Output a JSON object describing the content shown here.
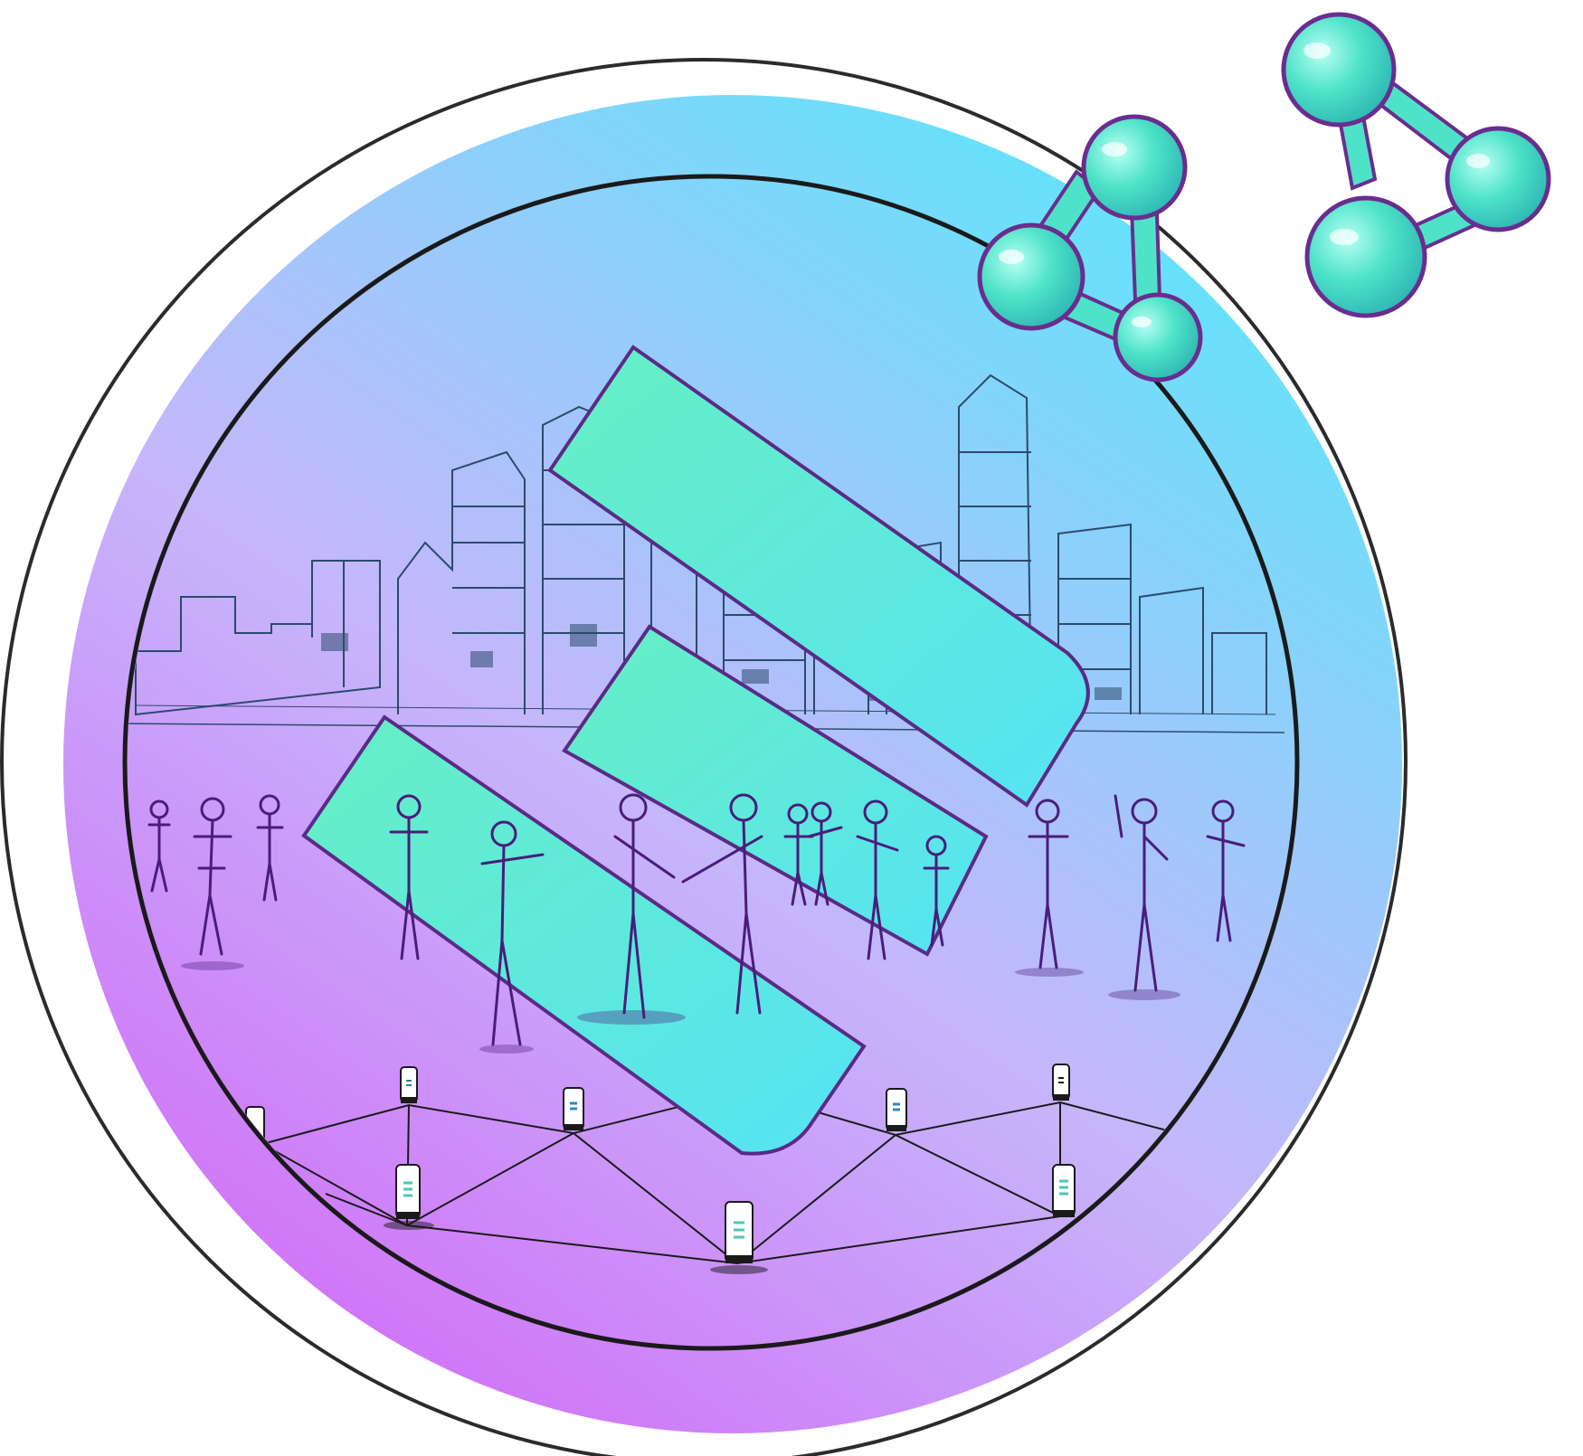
{
  "illustration": {
    "outer_ring": {
      "stroke": "#2b2b2b"
    },
    "gradient": {
      "top": "#5be6fb",
      "middle": "#c6b6fb",
      "bottom": "#d26bf7"
    },
    "logo_bars": {
      "fill": "#5fecc8",
      "fill_end": "#58e4f2",
      "stroke": "#5a2a86"
    },
    "skyline": {
      "stroke": "#2c4a6e"
    },
    "people": {
      "stroke": "#4a1d7a"
    },
    "molecules": {
      "fill": "#4ee3c9",
      "stroke": "#6a2d8f"
    },
    "network_devices": {
      "body": "#ffffff",
      "stroke": "#1a1a1a",
      "screen_mark": "#4ec7b6"
    }
  }
}
